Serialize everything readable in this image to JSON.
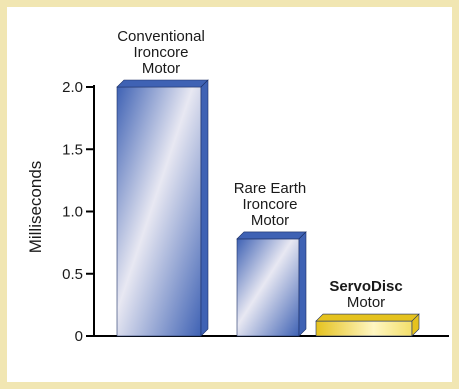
{
  "colors": {
    "frame": "#f1e6b2",
    "bar_blue_dark": "#3f62b4",
    "bar_blue_light": "#e8e8f2",
    "bar_gold": "#e5c21e",
    "bar_gold_light": "#fff6c2",
    "axis": "#000000"
  },
  "chart_data": {
    "type": "bar",
    "ylabel": "Milliseconds",
    "ylim": [
      0,
      2.0
    ],
    "yticks": [
      {
        "value": 2.0,
        "label": "2.0"
      },
      {
        "value": 1.5,
        "label": "1.5"
      },
      {
        "value": 1.0,
        "label": "1.0"
      },
      {
        "value": 0.5,
        "label": "0.5"
      },
      {
        "value": 0,
        "label": "0"
      }
    ],
    "grid": false,
    "legend": "none",
    "bars": [
      {
        "lines": [
          "Conventional",
          "Ironcore",
          "Motor"
        ],
        "value": 2.0,
        "style": "blue",
        "bold_first": false
      },
      {
        "lines": [
          "Rare Earth",
          "Ironcore",
          "Motor"
        ],
        "value": 0.78,
        "style": "blue",
        "bold_first": false
      },
      {
        "lines": [
          "ServoDisc",
          "Motor"
        ],
        "value": 0.12,
        "style": "gold",
        "bold_first": true
      }
    ]
  }
}
